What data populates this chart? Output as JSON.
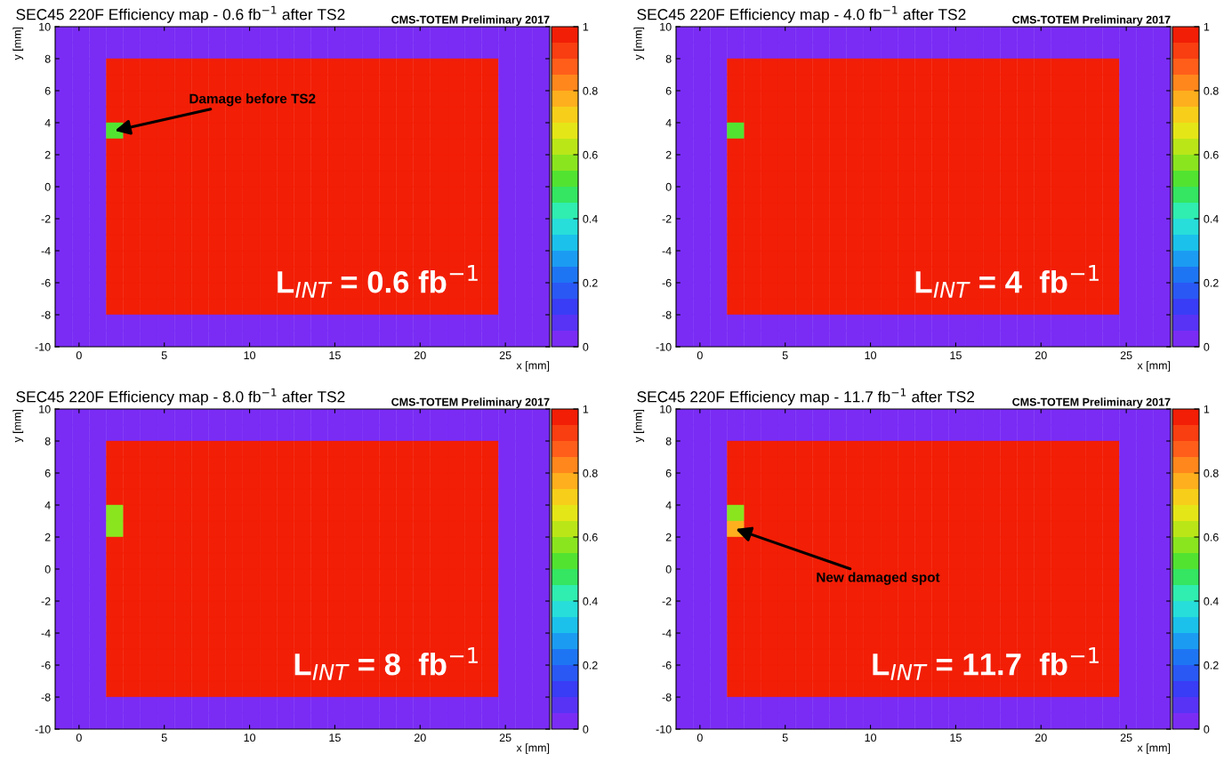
{
  "chart_data": [
    {
      "type": "heatmap",
      "title": "SEC45 220F Efficiency map - 0.6 fb$^{−1}$ after TS2",
      "subtitle": "CMS-TOTEM Preliminary 2017",
      "xlabel": "x [mm]",
      "ylabel": "y [mm]",
      "x": [
        -0.9,
        0.1,
        1.1,
        2.1,
        3.1,
        4.1,
        5.1,
        6.1,
        7.1,
        8.1,
        9.1,
        10.1,
        11.1,
        12.1,
        13.1,
        14.1,
        15.1,
        16.1,
        17.1,
        18.1,
        19.1,
        20.1,
        21.1,
        22.1,
        23.1,
        24.1,
        25.1,
        26.1,
        27.1
      ],
      "y": [
        9.5,
        8.5,
        7.5,
        6.5,
        5.5,
        4.5,
        3.5,
        2.5,
        1.5,
        0.5,
        -0.5,
        -1.5,
        -2.5,
        -3.5,
        -4.5,
        -5.5,
        -6.5,
        -7.5,
        -8.5,
        -9.5
      ],
      "cells": [
        [
          0,
          0,
          0,
          0,
          0,
          0,
          0,
          0,
          0,
          0,
          0,
          0,
          0,
          0,
          0,
          0,
          0,
          0,
          0,
          0,
          0,
          0,
          0,
          0,
          0,
          0,
          0,
          0,
          0
        ],
        [
          0,
          0,
          0,
          0,
          0,
          0,
          0,
          0,
          0,
          0,
          0,
          0,
          0,
          0,
          0,
          0,
          0,
          0,
          0,
          0,
          0,
          0,
          0,
          0,
          0,
          0,
          0,
          0,
          0
        ],
        [
          0,
          0,
          0,
          1,
          1,
          1,
          1,
          1,
          1,
          1,
          1,
          1,
          1,
          1,
          1,
          1,
          1,
          1,
          1,
          1,
          1,
          1,
          1,
          1,
          1,
          1,
          0,
          0,
          0
        ],
        [
          0,
          0,
          0,
          1,
          1,
          1,
          1,
          1,
          1,
          1,
          1,
          1,
          1,
          1,
          1,
          1,
          1,
          1,
          1,
          1,
          1,
          1,
          1,
          1,
          1,
          1,
          0,
          0,
          0
        ],
        [
          0,
          0,
          0,
          1,
          1,
          1,
          1,
          1,
          1,
          1,
          1,
          1,
          1,
          1,
          1,
          1,
          1,
          1,
          1,
          1,
          1,
          1,
          1,
          1,
          1,
          1,
          0,
          0,
          0
        ],
        [
          0,
          0,
          0,
          1,
          1,
          1,
          1,
          1,
          1,
          1,
          1,
          1,
          1,
          1,
          1,
          1,
          1,
          1,
          1,
          1,
          1,
          1,
          1,
          1,
          1,
          1,
          0,
          0,
          0
        ],
        [
          0,
          0,
          0,
          0.5,
          1,
          1,
          1,
          1,
          1,
          1,
          1,
          1,
          1,
          1,
          1,
          1,
          1,
          1,
          1,
          1,
          1,
          1,
          1,
          1,
          1,
          1,
          0,
          0,
          0
        ],
        [
          0,
          0,
          0,
          1,
          1,
          1,
          1,
          1,
          1,
          1,
          1,
          1,
          1,
          1,
          1,
          1,
          1,
          1,
          1,
          1,
          1,
          1,
          1,
          1,
          1,
          1,
          0,
          0,
          0
        ],
        [
          0,
          0,
          0,
          1,
          1,
          1,
          1,
          1,
          1,
          1,
          1,
          1,
          1,
          1,
          1,
          1,
          1,
          1,
          1,
          1,
          1,
          1,
          1,
          1,
          1,
          1,
          0,
          0,
          0
        ],
        [
          0,
          0,
          0,
          1,
          1,
          1,
          1,
          1,
          1,
          1,
          1,
          1,
          1,
          1,
          1,
          1,
          1,
          1,
          1,
          1,
          1,
          1,
          1,
          1,
          1,
          1,
          0,
          0,
          0
        ],
        [
          0,
          0,
          0,
          1,
          1,
          1,
          1,
          1,
          1,
          1,
          1,
          1,
          1,
          1,
          1,
          1,
          1,
          1,
          1,
          1,
          1,
          1,
          1,
          1,
          1,
          1,
          0,
          0,
          0
        ],
        [
          0,
          0,
          0,
          1,
          1,
          1,
          1,
          1,
          1,
          1,
          1,
          1,
          1,
          1,
          1,
          1,
          1,
          1,
          1,
          1,
          1,
          1,
          1,
          1,
          1,
          1,
          0,
          0,
          0
        ],
        [
          0,
          0,
          0,
          1,
          1,
          1,
          1,
          1,
          1,
          1,
          1,
          1,
          1,
          1,
          1,
          1,
          1,
          1,
          1,
          1,
          1,
          1,
          1,
          1,
          1,
          1,
          0,
          0,
          0
        ],
        [
          0,
          0,
          0,
          1,
          1,
          1,
          1,
          1,
          1,
          1,
          1,
          1,
          1,
          1,
          1,
          1,
          1,
          1,
          1,
          1,
          1,
          1,
          1,
          1,
          1,
          1,
          0,
          0,
          0
        ],
        [
          0,
          0,
          0,
          1,
          1,
          1,
          1,
          1,
          1,
          1,
          1,
          1,
          1,
          1,
          1,
          1,
          1,
          1,
          1,
          1,
          1,
          1,
          1,
          1,
          1,
          1,
          0,
          0,
          0
        ],
        [
          0,
          0,
          0,
          1,
          1,
          1,
          1,
          1,
          1,
          1,
          1,
          1,
          1,
          1,
          1,
          1,
          1,
          1,
          1,
          1,
          1,
          1,
          1,
          1,
          1,
          1,
          0,
          0,
          0
        ],
        [
          0,
          0,
          0,
          1,
          1,
          1,
          1,
          1,
          1,
          1,
          1,
          1,
          1,
          1,
          1,
          1,
          1,
          1,
          1,
          1,
          1,
          1,
          1,
          1,
          1,
          1,
          0,
          0,
          0
        ],
        [
          0,
          0,
          0,
          1,
          1,
          1,
          1,
          1,
          1,
          1,
          1,
          1,
          1,
          1,
          1,
          1,
          1,
          1,
          1,
          1,
          1,
          1,
          1,
          1,
          1,
          1,
          0,
          0,
          0
        ],
        [
          0,
          0,
          0,
          0,
          0,
          0,
          0,
          0,
          0,
          0,
          0,
          0,
          0,
          0,
          0,
          0,
          0,
          0,
          0,
          0,
          0,
          0,
          0,
          0,
          0,
          0,
          0,
          0,
          0
        ],
        [
          0,
          0,
          0,
          0,
          0,
          0,
          0,
          0,
          0,
          0,
          0,
          0,
          0,
          0,
          0,
          0,
          0,
          0,
          0,
          0,
          0,
          0,
          0,
          0,
          0,
          0,
          0,
          0,
          0
        ]
      ],
      "xlim": [
        -1.4,
        27.6
      ],
      "ylim": [
        -10,
        10
      ],
      "xticks": [
        0,
        5,
        10,
        15,
        20,
        25
      ],
      "yticks": [
        -10,
        -8,
        -6,
        -4,
        -2,
        0,
        2,
        4,
        6,
        8,
        10
      ],
      "clim": [
        0,
        1
      ],
      "cticks": [
        0,
        0.2,
        0.4,
        0.6,
        0.8,
        1
      ],
      "annotations": [
        "Damage before TS2",
        "L$_{INT}$ = 0.6 fb$^{−1}$"
      ]
    },
    {
      "type": "heatmap",
      "title": "SEC45 220F Efficiency map - 4.0 fb$^{−1}$ after TS2",
      "subtitle": "CMS-TOTEM Preliminary 2017",
      "xlabel": "x [mm]",
      "ylabel": "y [mm]",
      "x": [
        -0.9,
        0.1,
        1.1,
        2.1,
        3.1,
        4.1,
        5.1,
        6.1,
        7.1,
        8.1,
        9.1,
        10.1,
        11.1,
        12.1,
        13.1,
        14.1,
        15.1,
        16.1,
        17.1,
        18.1,
        19.1,
        20.1,
        21.1,
        22.1,
        23.1,
        24.1,
        25.1,
        26.1,
        27.1
      ],
      "y": [
        9.5,
        8.5,
        7.5,
        6.5,
        5.5,
        4.5,
        3.5,
        2.5,
        1.5,
        0.5,
        -0.5,
        -1.5,
        -2.5,
        -3.5,
        -4.5,
        -5.5,
        -6.5,
        -7.5,
        -8.5,
        -9.5
      ],
      "cells": [
        [
          0,
          0,
          0,
          0,
          0,
          0,
          0,
          0,
          0,
          0,
          0,
          0,
          0,
          0,
          0,
          0,
          0,
          0,
          0,
          0,
          0,
          0,
          0,
          0,
          0,
          0,
          0,
          0,
          0
        ],
        [
          0,
          0,
          0,
          0,
          0,
          0,
          0,
          0,
          0,
          0,
          0,
          0,
          0,
          0,
          0,
          0,
          0,
          0,
          0,
          0,
          0,
          0,
          0,
          0,
          0,
          0,
          0,
          0,
          0
        ],
        [
          0,
          0,
          0,
          1,
          1,
          1,
          1,
          1,
          1,
          1,
          1,
          1,
          1,
          1,
          1,
          1,
          1,
          1,
          1,
          1,
          1,
          1,
          1,
          1,
          1,
          1,
          0,
          0,
          0
        ],
        [
          0,
          0,
          0,
          1,
          1,
          1,
          1,
          1,
          1,
          1,
          1,
          1,
          1,
          1,
          1,
          1,
          1,
          1,
          1,
          1,
          1,
          1,
          1,
          1,
          1,
          1,
          0,
          0,
          0
        ],
        [
          0,
          0,
          0,
          1,
          1,
          1,
          1,
          1,
          1,
          1,
          1,
          1,
          1,
          1,
          1,
          1,
          1,
          1,
          1,
          1,
          1,
          1,
          1,
          1,
          1,
          1,
          0,
          0,
          0
        ],
        [
          0,
          0,
          0,
          1,
          1,
          1,
          1,
          1,
          1,
          1,
          1,
          1,
          1,
          1,
          1,
          1,
          1,
          1,
          1,
          1,
          1,
          1,
          1,
          1,
          1,
          1,
          0,
          0,
          0
        ],
        [
          0,
          0,
          0,
          0.5,
          1,
          1,
          1,
          1,
          1,
          1,
          1,
          1,
          1,
          1,
          1,
          1,
          1,
          1,
          1,
          1,
          1,
          1,
          1,
          1,
          1,
          1,
          0,
          0,
          0
        ],
        [
          0,
          0,
          0,
          1,
          1,
          1,
          1,
          1,
          1,
          1,
          1,
          1,
          1,
          1,
          1,
          1,
          1,
          1,
          1,
          1,
          1,
          1,
          1,
          1,
          1,
          1,
          0,
          0,
          0
        ],
        [
          0,
          0,
          0,
          1,
          1,
          1,
          1,
          1,
          1,
          1,
          1,
          1,
          1,
          1,
          1,
          1,
          1,
          1,
          1,
          1,
          1,
          1,
          1,
          1,
          1,
          1,
          0,
          0,
          0
        ],
        [
          0,
          0,
          0,
          1,
          1,
          1,
          1,
          1,
          1,
          1,
          1,
          1,
          1,
          1,
          1,
          1,
          1,
          1,
          1,
          1,
          1,
          1,
          1,
          1,
          1,
          1,
          0,
          0,
          0
        ],
        [
          0,
          0,
          0,
          1,
          1,
          1,
          1,
          1,
          1,
          1,
          1,
          1,
          1,
          1,
          1,
          1,
          1,
          1,
          1,
          1,
          1,
          1,
          1,
          1,
          1,
          1,
          0,
          0,
          0
        ],
        [
          0,
          0,
          0,
          1,
          1,
          1,
          1,
          1,
          1,
          1,
          1,
          1,
          1,
          1,
          1,
          1,
          1,
          1,
          1,
          1,
          1,
          1,
          1,
          1,
          1,
          1,
          0,
          0,
          0
        ],
        [
          0,
          0,
          0,
          1,
          1,
          1,
          1,
          1,
          1,
          1,
          1,
          1,
          1,
          1,
          1,
          1,
          1,
          1,
          1,
          1,
          1,
          1,
          1,
          1,
          1,
          1,
          0,
          0,
          0
        ],
        [
          0,
          0,
          0,
          1,
          1,
          1,
          1,
          1,
          1,
          1,
          1,
          1,
          1,
          1,
          1,
          1,
          1,
          1,
          1,
          1,
          1,
          1,
          1,
          1,
          1,
          1,
          0,
          0,
          0
        ],
        [
          0,
          0,
          0,
          1,
          1,
          1,
          1,
          1,
          1,
          1,
          1,
          1,
          1,
          1,
          1,
          1,
          1,
          1,
          1,
          1,
          1,
          1,
          1,
          1,
          1,
          1,
          0,
          0,
          0
        ],
        [
          0,
          0,
          0,
          1,
          1,
          1,
          1,
          1,
          1,
          1,
          1,
          1,
          1,
          1,
          1,
          1,
          1,
          1,
          1,
          1,
          1,
          1,
          1,
          1,
          1,
          1,
          0,
          0,
          0
        ],
        [
          0,
          0,
          0,
          1,
          1,
          1,
          1,
          1,
          1,
          1,
          1,
          1,
          1,
          1,
          1,
          1,
          1,
          1,
          1,
          1,
          1,
          1,
          1,
          1,
          1,
          1,
          0,
          0,
          0
        ],
        [
          0,
          0,
          0,
          1,
          1,
          1,
          1,
          1,
          1,
          1,
          1,
          1,
          1,
          1,
          1,
          1,
          1,
          1,
          1,
          1,
          1,
          1,
          1,
          1,
          1,
          1,
          0,
          0,
          0
        ],
        [
          0,
          0,
          0,
          0,
          0,
          0,
          0,
          0,
          0,
          0,
          0,
          0,
          0,
          0,
          0,
          0,
          0,
          0,
          0,
          0,
          0,
          0,
          0,
          0,
          0,
          0,
          0,
          0,
          0
        ],
        [
          0,
          0,
          0,
          0,
          0,
          0,
          0,
          0,
          0,
          0,
          0,
          0,
          0,
          0,
          0,
          0,
          0,
          0,
          0,
          0,
          0,
          0,
          0,
          0,
          0,
          0,
          0,
          0,
          0
        ]
      ],
      "xlim": [
        -1.4,
        27.6
      ],
      "ylim": [
        -10,
        10
      ],
      "xticks": [
        0,
        5,
        10,
        15,
        20,
        25
      ],
      "yticks": [
        -10,
        -8,
        -6,
        -4,
        -2,
        0,
        2,
        4,
        6,
        8,
        10
      ],
      "clim": [
        0,
        1
      ],
      "cticks": [
        0,
        0.2,
        0.4,
        0.6,
        0.8,
        1
      ],
      "annotations": [
        "L$_{INT}$ = 4  fb$^{−1}$"
      ]
    },
    {
      "type": "heatmap",
      "title": "SEC45 220F Efficiency map - 8.0 fb$^{−1}$ after TS2",
      "subtitle": "CMS-TOTEM Preliminary 2017",
      "xlabel": "x [mm]",
      "ylabel": "y [mm]",
      "x": [
        -0.9,
        0.1,
        1.1,
        2.1,
        3.1,
        4.1,
        5.1,
        6.1,
        7.1,
        8.1,
        9.1,
        10.1,
        11.1,
        12.1,
        13.1,
        14.1,
        15.1,
        16.1,
        17.1,
        18.1,
        19.1,
        20.1,
        21.1,
        22.1,
        23.1,
        24.1,
        25.1,
        26.1,
        27.1
      ],
      "y": [
        9.5,
        8.5,
        7.5,
        6.5,
        5.5,
        4.5,
        3.5,
        2.5,
        1.5,
        0.5,
        -0.5,
        -1.5,
        -2.5,
        -3.5,
        -4.5,
        -5.5,
        -6.5,
        -7.5,
        -8.5,
        -9.5
      ],
      "cells": [
        [
          0,
          0,
          0,
          0,
          0,
          0,
          0,
          0,
          0,
          0,
          0,
          0,
          0,
          0,
          0,
          0,
          0,
          0,
          0,
          0,
          0,
          0,
          0,
          0,
          0,
          0,
          0,
          0,
          0
        ],
        [
          0,
          0,
          0,
          0,
          0,
          0,
          0,
          0,
          0,
          0,
          0,
          0,
          0,
          0,
          0,
          0,
          0,
          0,
          0,
          0,
          0,
          0,
          0,
          0,
          0,
          0,
          0,
          0,
          0
        ],
        [
          0,
          0,
          0,
          1,
          1,
          1,
          1,
          1,
          1,
          1,
          1,
          1,
          1,
          1,
          1,
          1,
          1,
          1,
          1,
          1,
          1,
          1,
          1,
          1,
          1,
          1,
          0,
          0,
          0
        ],
        [
          0,
          0,
          0,
          1,
          1,
          1,
          1,
          1,
          1,
          1,
          1,
          1,
          1,
          1,
          1,
          1,
          1,
          1,
          1,
          1,
          1,
          1,
          1,
          1,
          1,
          1,
          0,
          0,
          0
        ],
        [
          0,
          0,
          0,
          1,
          1,
          1,
          1,
          1,
          1,
          1,
          1,
          1,
          1,
          1,
          1,
          1,
          1,
          1,
          1,
          1,
          1,
          1,
          1,
          1,
          1,
          1,
          0,
          0,
          0
        ],
        [
          0,
          0,
          0,
          1,
          1,
          1,
          1,
          1,
          1,
          1,
          1,
          1,
          1,
          1,
          1,
          1,
          1,
          1,
          1,
          1,
          1,
          1,
          1,
          1,
          1,
          1,
          0,
          0,
          0
        ],
        [
          0,
          0,
          0,
          0.6,
          1,
          1,
          1,
          1,
          1,
          1,
          1,
          1,
          1,
          1,
          1,
          1,
          1,
          1,
          1,
          1,
          1,
          1,
          1,
          1,
          1,
          1,
          0,
          0,
          0
        ],
        [
          0,
          0,
          0,
          0.55,
          1,
          1,
          1,
          1,
          1,
          1,
          1,
          1,
          1,
          1,
          1,
          1,
          1,
          1,
          1,
          1,
          1,
          1,
          1,
          1,
          1,
          1,
          0,
          0,
          0
        ],
        [
          0,
          0,
          0,
          1,
          1,
          1,
          1,
          1,
          1,
          1,
          1,
          1,
          1,
          1,
          1,
          1,
          1,
          1,
          1,
          1,
          1,
          1,
          1,
          1,
          1,
          1,
          0,
          0,
          0
        ],
        [
          0,
          0,
          0,
          1,
          1,
          1,
          1,
          1,
          1,
          1,
          1,
          1,
          1,
          1,
          1,
          1,
          1,
          1,
          1,
          1,
          1,
          1,
          1,
          1,
          1,
          1,
          0,
          0,
          0
        ],
        [
          0,
          0,
          0,
          1,
          1,
          1,
          1,
          1,
          1,
          1,
          1,
          1,
          1,
          1,
          1,
          1,
          1,
          1,
          1,
          1,
          1,
          1,
          1,
          1,
          1,
          1,
          0,
          0,
          0
        ],
        [
          0,
          0,
          0,
          1,
          1,
          1,
          1,
          1,
          1,
          1,
          1,
          1,
          1,
          1,
          1,
          1,
          1,
          1,
          1,
          1,
          1,
          1,
          1,
          1,
          1,
          1,
          0,
          0,
          0
        ],
        [
          0,
          0,
          0,
          1,
          1,
          1,
          1,
          1,
          1,
          1,
          1,
          1,
          1,
          1,
          1,
          1,
          1,
          1,
          1,
          1,
          1,
          1,
          1,
          1,
          1,
          1,
          0,
          0,
          0
        ],
        [
          0,
          0,
          0,
          1,
          1,
          1,
          1,
          1,
          1,
          1,
          1,
          1,
          1,
          1,
          1,
          1,
          1,
          1,
          1,
          1,
          1,
          1,
          1,
          1,
          1,
          1,
          0,
          0,
          0
        ],
        [
          0,
          0,
          0,
          1,
          1,
          1,
          1,
          1,
          1,
          1,
          1,
          1,
          1,
          1,
          1,
          1,
          1,
          1,
          1,
          1,
          1,
          1,
          1,
          1,
          1,
          1,
          0,
          0,
          0
        ],
        [
          0,
          0,
          0,
          1,
          1,
          1,
          1,
          1,
          1,
          1,
          1,
          1,
          1,
          1,
          1,
          1,
          1,
          1,
          1,
          1,
          1,
          1,
          1,
          1,
          1,
          1,
          0,
          0,
          0
        ],
        [
          0,
          0,
          0,
          1,
          1,
          1,
          1,
          1,
          1,
          1,
          1,
          1,
          1,
          1,
          1,
          1,
          1,
          1,
          1,
          1,
          1,
          1,
          1,
          1,
          1,
          1,
          0,
          0,
          0
        ],
        [
          0,
          0,
          0,
          1,
          1,
          1,
          1,
          1,
          1,
          1,
          1,
          1,
          1,
          1,
          1,
          1,
          1,
          1,
          1,
          1,
          1,
          1,
          1,
          1,
          1,
          1,
          0,
          0,
          0
        ],
        [
          0,
          0,
          0,
          0,
          0,
          0,
          0,
          0,
          0,
          0,
          0,
          0,
          0,
          0,
          0,
          0,
          0,
          0,
          0,
          0,
          0,
          0,
          0,
          0,
          0,
          0,
          0,
          0,
          0
        ],
        [
          0,
          0,
          0,
          0,
          0,
          0,
          0,
          0,
          0,
          0,
          0,
          0,
          0,
          0,
          0,
          0,
          0,
          0,
          0,
          0,
          0,
          0,
          0,
          0,
          0,
          0,
          0,
          0,
          0
        ]
      ],
      "xlim": [
        -1.4,
        27.6
      ],
      "ylim": [
        -10,
        10
      ],
      "xticks": [
        0,
        5,
        10,
        15,
        20,
        25
      ],
      "yticks": [
        -10,
        -8,
        -6,
        -4,
        -2,
        0,
        2,
        4,
        6,
        8,
        10
      ],
      "clim": [
        0,
        1
      ],
      "cticks": [
        0,
        0.2,
        0.4,
        0.6,
        0.8,
        1
      ],
      "annotations": [
        "L$_{INT}$ = 8  fb$^{−1}$"
      ]
    },
    {
      "type": "heatmap",
      "title": "SEC45 220F Efficiency map - 11.7 fb$^{−1}$ after TS2",
      "subtitle": "CMS-TOTEM Preliminary 2017",
      "xlabel": "x [mm]",
      "ylabel": "y [mm]",
      "x": [
        -0.9,
        0.1,
        1.1,
        2.1,
        3.1,
        4.1,
        5.1,
        6.1,
        7.1,
        8.1,
        9.1,
        10.1,
        11.1,
        12.1,
        13.1,
        14.1,
        15.1,
        16.1,
        17.1,
        18.1,
        19.1,
        20.1,
        21.1,
        22.1,
        23.1,
        24.1,
        25.1,
        26.1,
        27.1
      ],
      "y": [
        9.5,
        8.5,
        7.5,
        6.5,
        5.5,
        4.5,
        3.5,
        2.5,
        1.5,
        0.5,
        -0.5,
        -1.5,
        -2.5,
        -3.5,
        -4.5,
        -5.5,
        -6.5,
        -7.5,
        -8.5,
        -9.5
      ],
      "cells": [
        [
          0,
          0,
          0,
          0,
          0,
          0,
          0,
          0,
          0,
          0,
          0,
          0,
          0,
          0,
          0,
          0,
          0,
          0,
          0,
          0,
          0,
          0,
          0,
          0,
          0,
          0,
          0,
          0,
          0
        ],
        [
          0,
          0,
          0,
          0,
          0,
          0,
          0,
          0,
          0,
          0,
          0,
          0,
          0,
          0,
          0,
          0,
          0,
          0,
          0,
          0,
          0,
          0,
          0,
          0,
          0,
          0,
          0,
          0,
          0
        ],
        [
          0,
          0,
          0,
          1,
          1,
          1,
          1,
          1,
          1,
          1,
          1,
          1,
          1,
          1,
          1,
          1,
          1,
          1,
          1,
          1,
          1,
          1,
          1,
          1,
          1,
          1,
          0,
          0,
          0
        ],
        [
          0,
          0,
          0,
          1,
          1,
          1,
          1,
          1,
          1,
          1,
          1,
          1,
          1,
          1,
          1,
          1,
          1,
          1,
          1,
          1,
          1,
          1,
          1,
          1,
          1,
          1,
          0,
          0,
          0
        ],
        [
          0,
          0,
          0,
          1,
          1,
          1,
          1,
          1,
          1,
          1,
          1,
          1,
          1,
          1,
          1,
          1,
          1,
          1,
          1,
          1,
          1,
          1,
          1,
          1,
          1,
          1,
          0,
          0,
          0
        ],
        [
          0,
          0,
          0,
          1,
          1,
          1,
          1,
          1,
          1,
          1,
          1,
          1,
          1,
          1,
          1,
          1,
          1,
          1,
          1,
          1,
          1,
          1,
          1,
          1,
          1,
          1,
          0,
          0,
          0
        ],
        [
          0,
          0,
          0,
          0.6,
          1,
          1,
          1,
          1,
          1,
          1,
          1,
          1,
          1,
          1,
          1,
          1,
          1,
          1,
          1,
          1,
          1,
          1,
          1,
          1,
          1,
          1,
          0,
          0,
          0
        ],
        [
          0,
          0,
          0,
          0.75,
          1,
          1,
          1,
          1,
          1,
          1,
          1,
          1,
          1,
          1,
          1,
          1,
          1,
          1,
          1,
          1,
          1,
          1,
          1,
          1,
          1,
          1,
          0,
          0,
          0
        ],
        [
          0,
          0,
          0,
          1,
          1,
          1,
          1,
          1,
          1,
          1,
          1,
          1,
          1,
          1,
          1,
          1,
          1,
          1,
          1,
          1,
          1,
          1,
          1,
          1,
          1,
          1,
          0,
          0,
          0
        ],
        [
          0,
          0,
          0,
          1,
          1,
          1,
          1,
          1,
          1,
          1,
          1,
          1,
          1,
          1,
          1,
          1,
          1,
          1,
          1,
          1,
          1,
          1,
          1,
          1,
          1,
          1,
          0,
          0,
          0
        ],
        [
          0,
          0,
          0,
          1,
          1,
          1,
          1,
          1,
          1,
          1,
          1,
          1,
          1,
          1,
          1,
          1,
          1,
          1,
          1,
          1,
          1,
          1,
          1,
          1,
          1,
          1,
          0,
          0,
          0
        ],
        [
          0,
          0,
          0,
          1,
          1,
          1,
          1,
          1,
          1,
          1,
          1,
          1,
          1,
          1,
          1,
          1,
          1,
          1,
          1,
          1,
          1,
          1,
          1,
          1,
          1,
          1,
          0,
          0,
          0
        ],
        [
          0,
          0,
          0,
          1,
          1,
          1,
          1,
          1,
          1,
          1,
          1,
          1,
          1,
          1,
          1,
          1,
          1,
          1,
          1,
          1,
          1,
          1,
          1,
          1,
          1,
          1,
          0,
          0,
          0
        ],
        [
          0,
          0,
          0,
          1,
          1,
          1,
          1,
          1,
          1,
          1,
          1,
          1,
          1,
          1,
          1,
          1,
          1,
          1,
          1,
          1,
          1,
          1,
          1,
          1,
          1,
          1,
          0,
          0,
          0
        ],
        [
          0,
          0,
          0,
          1,
          1,
          1,
          1,
          1,
          1,
          1,
          1,
          1,
          1,
          1,
          1,
          1,
          1,
          1,
          1,
          1,
          1,
          1,
          1,
          1,
          1,
          1,
          0,
          0,
          0
        ],
        [
          0,
          0,
          0,
          1,
          1,
          1,
          1,
          1,
          1,
          1,
          1,
          1,
          1,
          1,
          1,
          1,
          1,
          1,
          1,
          1,
          1,
          1,
          1,
          1,
          1,
          1,
          0,
          0,
          0
        ],
        [
          0,
          0,
          0,
          1,
          1,
          1,
          1,
          1,
          1,
          1,
          1,
          1,
          1,
          1,
          1,
          1,
          1,
          1,
          1,
          1,
          1,
          1,
          1,
          1,
          1,
          1,
          0,
          0,
          0
        ],
        [
          0,
          0,
          0,
          1,
          1,
          1,
          1,
          1,
          1,
          1,
          1,
          1,
          1,
          1,
          1,
          1,
          1,
          1,
          1,
          1,
          1,
          1,
          1,
          1,
          1,
          1,
          0,
          0,
          0
        ],
        [
          0,
          0,
          0,
          0,
          0,
          0,
          0,
          0,
          0,
          0,
          0,
          0,
          0,
          0,
          0,
          0,
          0,
          0,
          0,
          0,
          0,
          0,
          0,
          0,
          0,
          0,
          0,
          0,
          0
        ],
        [
          0,
          0,
          0,
          0,
          0,
          0,
          0,
          0,
          0,
          0,
          0,
          0,
          0,
          0,
          0,
          0,
          0,
          0,
          0,
          0,
          0,
          0,
          0,
          0,
          0,
          0,
          0,
          0,
          0
        ]
      ],
      "xlim": [
        -1.4,
        27.6
      ],
      "ylim": [
        -10,
        10
      ],
      "xticks": [
        0,
        5,
        10,
        15,
        20,
        25
      ],
      "yticks": [
        -10,
        -8,
        -6,
        -4,
        -2,
        0,
        2,
        4,
        6,
        8,
        10
      ],
      "clim": [
        0,
        1
      ],
      "cticks": [
        0,
        0.2,
        0.4,
        0.6,
        0.8,
        1
      ],
      "annotations": [
        "New damaged spot",
        "L$_{INT}$ = 11.7  fb$^{−1}$"
      ]
    }
  ]
}
